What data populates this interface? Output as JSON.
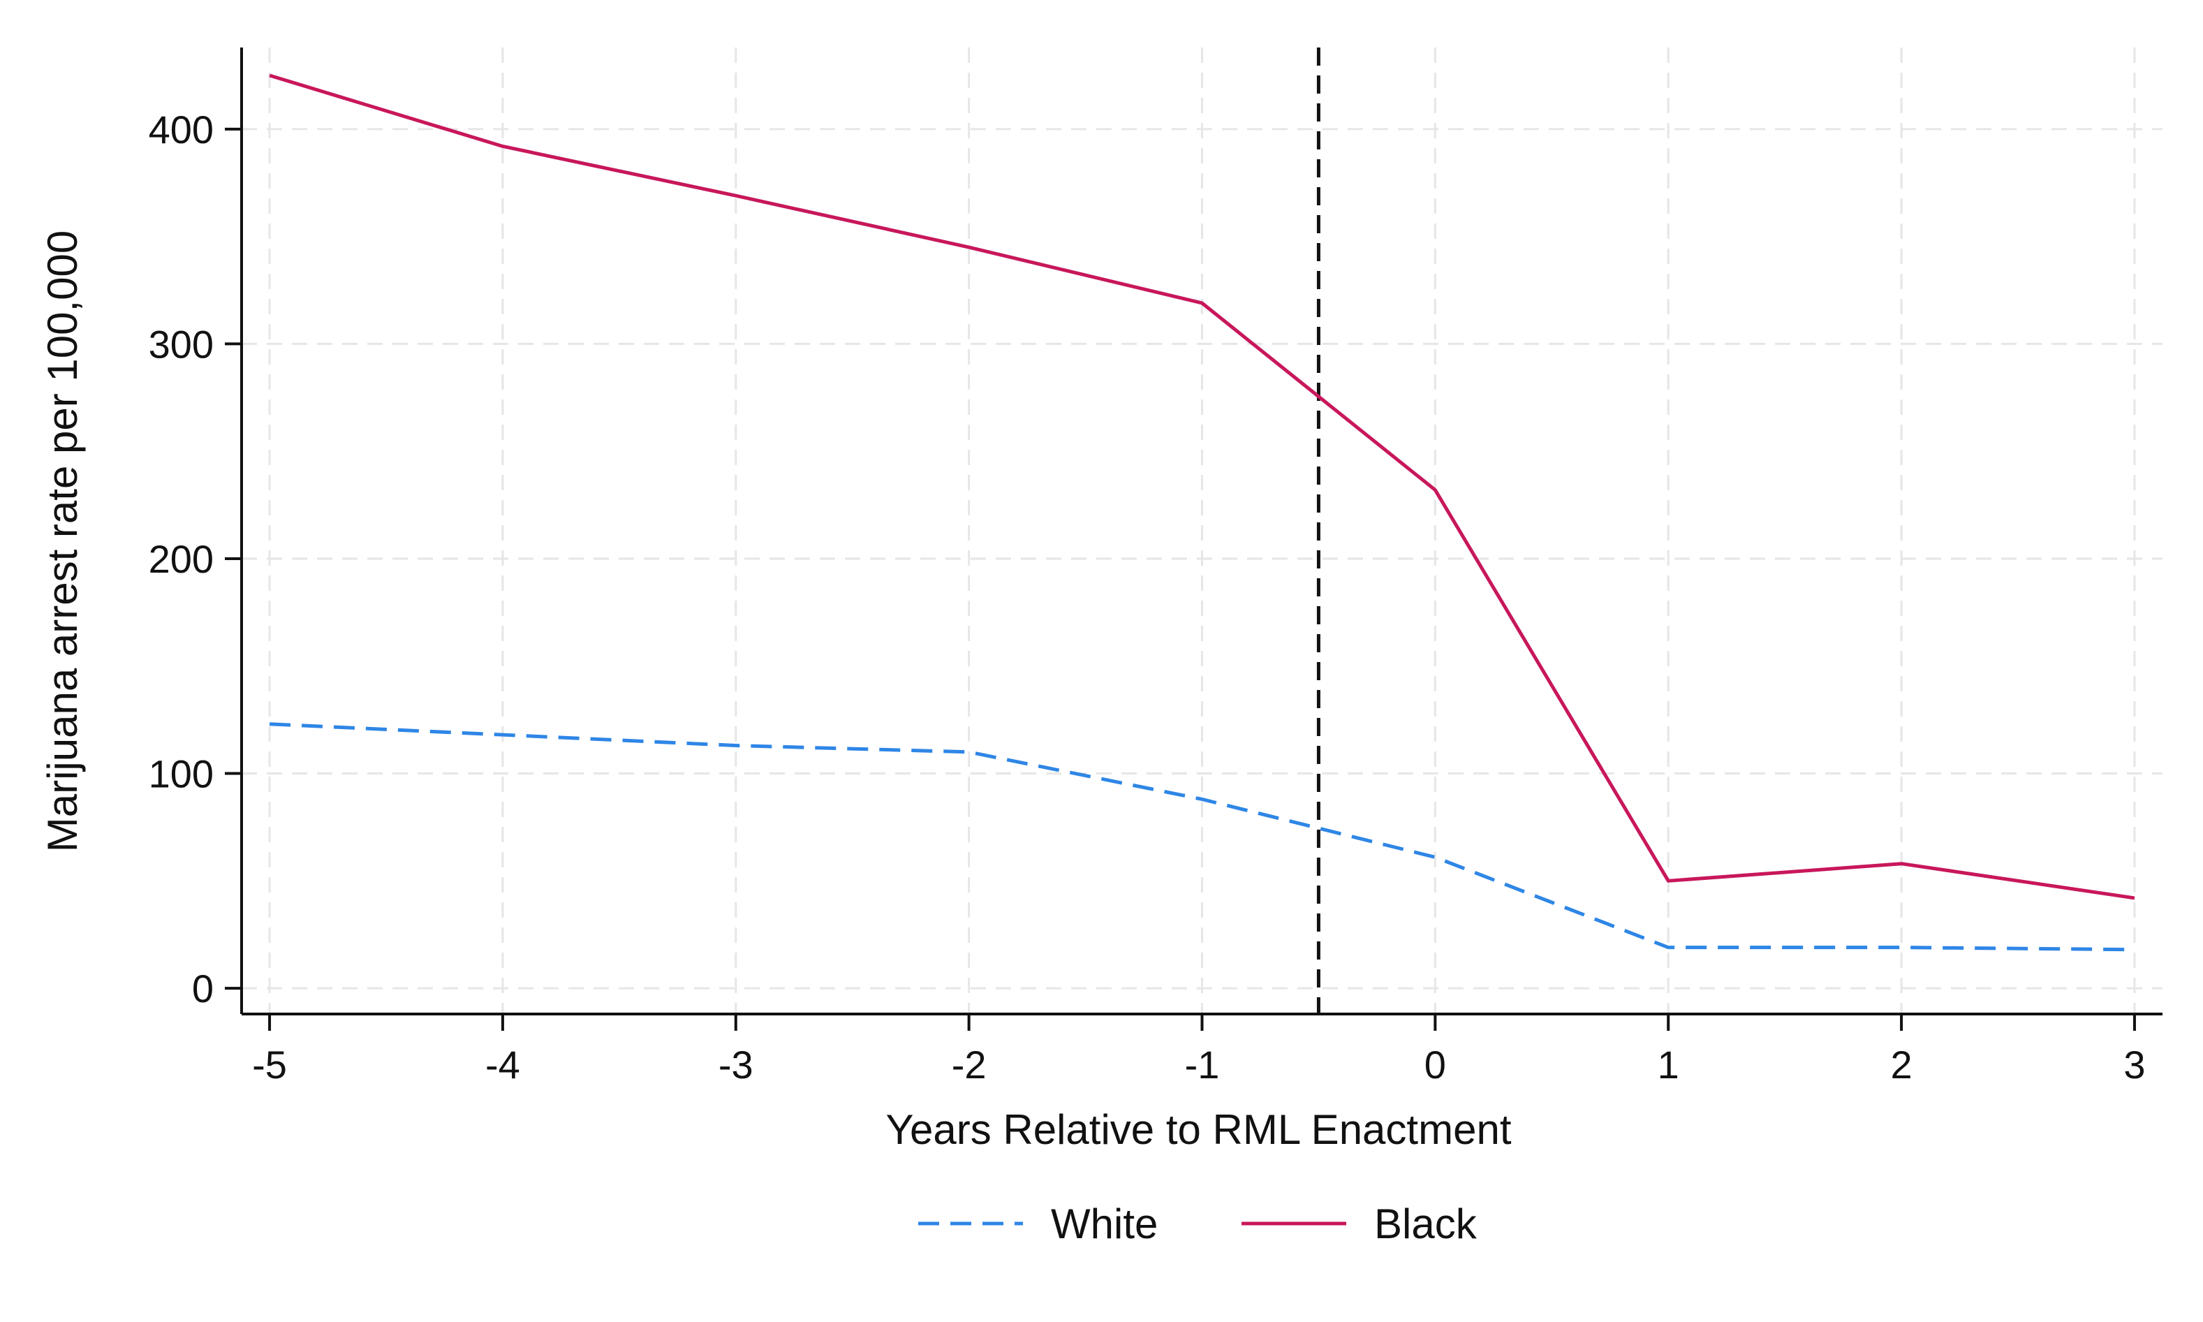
{
  "chart_data": {
    "type": "line",
    "xlabel": "Years Relative to RML Enactment",
    "ylabel": "Marijuana arrest rate per 100,000",
    "x": [
      -5,
      -4,
      -3,
      -2,
      -1,
      0,
      1,
      2,
      3
    ],
    "x_ticks": [
      -5,
      -4,
      -3,
      -2,
      -1,
      0,
      1,
      2,
      3
    ],
    "y_ticks": [
      0,
      100,
      200,
      300,
      400
    ],
    "xlim": [
      -5.12,
      3.12
    ],
    "ylim": [
      -12,
      438
    ],
    "grid": true,
    "reference_line": {
      "x": -0.5,
      "style": "dashed",
      "color": "#111111"
    },
    "series": [
      {
        "name": "White",
        "color": "#2E86E6",
        "style": "dashed",
        "values": [
          123,
          118,
          113,
          110,
          88,
          61,
          19,
          19,
          18
        ]
      },
      {
        "name": "Black",
        "color": "#C8175B",
        "style": "solid",
        "values": [
          425,
          392,
          369,
          345,
          319,
          232,
          50,
          58,
          42
        ]
      }
    ],
    "legend_position": "bottom-center"
  }
}
